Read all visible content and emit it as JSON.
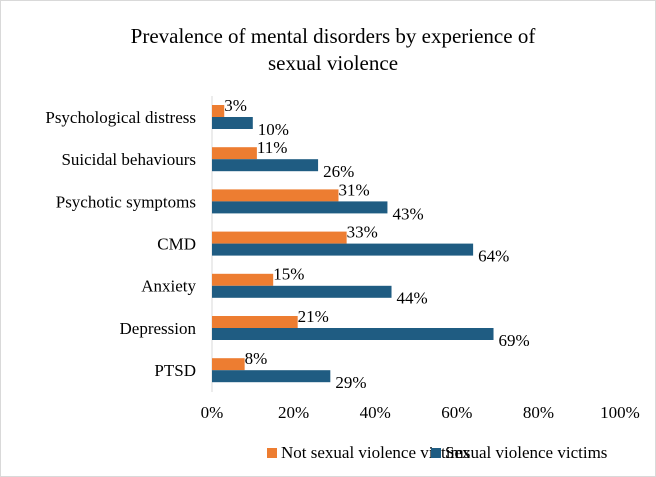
{
  "chart_data": {
    "type": "hbar",
    "title": [
      "Prevalence of mental disorders by experience of",
      "sexual violence"
    ],
    "categories": [
      "Psychological distress",
      "Suicidal behaviours",
      "Psychotic symptoms",
      "CMD",
      "Anxiety",
      "Depression",
      "PTSD"
    ],
    "series": [
      {
        "name": "Not sexual violence victims",
        "color": "#ed7d31",
        "values": [
          3,
          11,
          31,
          33,
          15,
          21,
          8
        ],
        "value_labels": [
          "3%",
          "11%",
          "31%",
          "33%",
          "15%",
          "21%",
          "8%"
        ]
      },
      {
        "name": "Sexual violence victims",
        "color": "#1f5c82",
        "values": [
          10,
          26,
          43,
          64,
          44,
          69,
          29
        ],
        "value_labels": [
          "10%",
          "26%",
          "43%",
          "64%",
          "44%",
          "69%",
          "29%"
        ]
      }
    ],
    "xlim": [
      0,
      100
    ],
    "xticks": [
      {
        "value": 0,
        "label": "0%"
      },
      {
        "value": 20,
        "label": "20%"
      },
      {
        "value": 40,
        "label": "40%"
      },
      {
        "value": 60,
        "label": "60%"
      },
      {
        "value": 80,
        "label": "80%"
      },
      {
        "value": 100,
        "label": "100%"
      }
    ],
    "legend": "bottom"
  }
}
